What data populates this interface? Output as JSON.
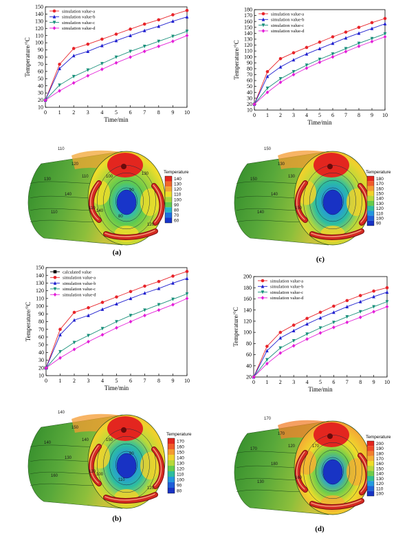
{
  "chart_data": [
    {
      "id": "a",
      "type": "line",
      "xlabel": "Time/min",
      "ylabel": "Temperature/°C",
      "ylim": [
        10,
        150
      ],
      "yticks": [
        10,
        20,
        30,
        40,
        50,
        60,
        70,
        80,
        90,
        100,
        110,
        120,
        130,
        140,
        150
      ],
      "xlim": [
        0,
        10
      ],
      "xticks": [
        0,
        1,
        2,
        3,
        4,
        5,
        6,
        7,
        8,
        9,
        10
      ],
      "legend_position": "top-left",
      "x": [
        0,
        1,
        2,
        3,
        4,
        5,
        6,
        7,
        8,
        9,
        10
      ],
      "series": [
        {
          "name": "simulation value-a",
          "color": "#e8242a",
          "marker": "circle",
          "values": [
            20,
            70,
            92,
            98,
            105,
            112,
            119,
            126,
            132,
            139,
            145
          ]
        },
        {
          "name": "simulation value-b",
          "color": "#1f1fcf",
          "marker": "triangle-up",
          "values": [
            20,
            64,
            82,
            88,
            96,
            103,
            110,
            117,
            123,
            130,
            136
          ]
        },
        {
          "name": "simulation value-c",
          "color": "#17907a",
          "marker": "triangle-down",
          "values": [
            20,
            41,
            53,
            62,
            71,
            80,
            88,
            95,
            102,
            109,
            116
          ]
        },
        {
          "name": "simulation value-d",
          "color": "#e31ed8",
          "marker": "diamond",
          "values": [
            20,
            33,
            44,
            54,
            63,
            72,
            80,
            88,
            95,
            102,
            110
          ]
        }
      ]
    },
    {
      "id": "c",
      "type": "line",
      "xlabel": "Time/min",
      "ylabel": "Temperature/°C",
      "ylim": [
        10,
        180
      ],
      "yticks": [
        10,
        20,
        30,
        40,
        50,
        60,
        70,
        80,
        90,
        100,
        110,
        120,
        130,
        140,
        150,
        160,
        170,
        180
      ],
      "xlim": [
        0,
        10
      ],
      "xticks": [
        0,
        1,
        2,
        3,
        4,
        5,
        6,
        7,
        8,
        9,
        10
      ],
      "legend_position": "top-left",
      "x": [
        0,
        1,
        2,
        3,
        4,
        5,
        6,
        7,
        8,
        9,
        10
      ],
      "series": [
        {
          "name": "simulation value-a",
          "color": "#e8242a",
          "marker": "circle",
          "values": [
            20,
            75,
            97,
            107,
            116,
            125,
            134,
            142,
            150,
            158,
            165
          ]
        },
        {
          "name": "simulation value-b",
          "color": "#1f1fcf",
          "marker": "triangle-up",
          "values": [
            20,
            67,
            83,
            95,
            105,
            114,
            123,
            132,
            140,
            148,
            156
          ]
        },
        {
          "name": "simulation value-c",
          "color": "#17907a",
          "marker": "triangle-down",
          "values": [
            20,
            47,
            63,
            75,
            86,
            96,
            105,
            114,
            123,
            131,
            139
          ]
        },
        {
          "name": "simulation value-d",
          "color": "#e31ed8",
          "marker": "diamond",
          "values": [
            20,
            40,
            57,
            70,
            81,
            91,
            100,
            109,
            118,
            126,
            134
          ]
        }
      ]
    },
    {
      "id": "b",
      "type": "line",
      "xlabel": "Time/min",
      "ylabel": "Temperature/°C",
      "ylim": [
        10,
        150
      ],
      "yticks": [
        10,
        20,
        30,
        40,
        50,
        60,
        70,
        80,
        90,
        100,
        110,
        120,
        130,
        140,
        150
      ],
      "xlim": [
        0,
        10
      ],
      "xticks": [
        0,
        1,
        2,
        3,
        4,
        5,
        6,
        7,
        8,
        9,
        10
      ],
      "legend_position": "top-left",
      "x": [
        0,
        1,
        2,
        3,
        4,
        5,
        6,
        7,
        8,
        9,
        10
      ],
      "series": [
        {
          "name": "calculated value",
          "color": "#000000",
          "marker": "square",
          "values": [
            20,
            null,
            null,
            null,
            null,
            null,
            null,
            null,
            null,
            null,
            null
          ]
        },
        {
          "name": "simulation value-a",
          "color": "#e8242a",
          "marker": "circle",
          "values": [
            20,
            70,
            92,
            98,
            105,
            112,
            119,
            126,
            132,
            139,
            145
          ]
        },
        {
          "name": "simulation value-b",
          "color": "#1f1fcf",
          "marker": "triangle-up",
          "values": [
            20,
            63,
            82,
            88,
            96,
            103,
            110,
            117,
            123,
            130,
            136
          ]
        },
        {
          "name": "simulation value-c",
          "color": "#17907a",
          "marker": "triangle-down",
          "values": [
            20,
            41,
            53,
            62,
            71,
            80,
            88,
            95,
            102,
            109,
            116
          ]
        },
        {
          "name": "simulation value-d",
          "color": "#e31ed8",
          "marker": "diamond",
          "values": [
            20,
            33,
            44,
            54,
            63,
            72,
            80,
            88,
            95,
            102,
            110
          ]
        }
      ]
    },
    {
      "id": "d",
      "type": "line",
      "xlabel": "Time/min",
      "ylabel": "Temperature/°C",
      "ylim": [
        20,
        200
      ],
      "yticks": [
        20,
        40,
        60,
        80,
        100,
        120,
        140,
        160,
        180,
        200
      ],
      "xlim": [
        0,
        10
      ],
      "xticks": [
        0,
        1,
        2,
        3,
        4,
        5,
        6,
        7,
        8,
        9,
        10
      ],
      "legend_position": "top-left",
      "x": [
        0,
        1,
        2,
        3,
        4,
        5,
        6,
        7,
        8,
        9,
        10
      ],
      "series": [
        {
          "name": "simulation value-a",
          "color": "#e8242a",
          "marker": "circle",
          "values": [
            20,
            75,
            100,
            113,
            125,
            136,
            147,
            157,
            166,
            174,
            180
          ]
        },
        {
          "name": "simulation value-b",
          "color": "#1f1fcf",
          "marker": "triangle-up",
          "values": [
            20,
            67,
            90,
            103,
            115,
            126,
            136,
            146,
            155,
            164,
            172
          ]
        },
        {
          "name": "simulation value-c",
          "color": "#17907a",
          "marker": "triangle-down",
          "values": [
            20,
            51,
            72,
            85,
            97,
            108,
            118,
            128,
            137,
            146,
            155
          ]
        },
        {
          "name": "simulation value-d",
          "color": "#e31ed8",
          "marker": "diamond",
          "values": [
            20,
            44,
            63,
            76,
            88,
            99,
            109,
            118,
            127,
            137,
            146
          ]
        }
      ]
    }
  ],
  "thermal_maps": [
    {
      "id": "a",
      "colorbar_title": "Temperature",
      "colorbar_ticks": [
        "140",
        "130",
        "120",
        "110",
        "100",
        "90",
        "80",
        "70",
        "60"
      ],
      "colors": [
        "#e3261f",
        "#f1682a",
        "#f2a533",
        "#eedd2a",
        "#a6d43a",
        "#5fca4f",
        "#27b6c7",
        "#1f6fe0",
        "#1835c9"
      ],
      "contour_labels": [
        "110",
        "120",
        "130",
        "140",
        "110",
        "110",
        "110",
        "100",
        "90",
        "80",
        "120",
        "140",
        "130"
      ]
    },
    {
      "id": "c",
      "colorbar_title": "Temperature",
      "colorbar_ticks": [
        "180",
        "170",
        "160",
        "150",
        "140",
        "130",
        "120",
        "110",
        "100",
        "90"
      ],
      "colors": [
        "#e3261f",
        "#f05b2a",
        "#f49b31",
        "#f0d22c",
        "#b7d93a",
        "#66cc4c",
        "#2dbd9f",
        "#2496df",
        "#1f5ed8",
        "#1832c4"
      ],
      "contour_labels": [
        "150",
        "130",
        "150",
        "140",
        "150",
        "130",
        "140"
      ]
    },
    {
      "id": "b",
      "colorbar_title": "Temperature",
      "colorbar_ticks": [
        "170",
        "160",
        "150",
        "140",
        "130",
        "120",
        "110",
        "100",
        "90",
        "80"
      ],
      "colors": [
        "#e3261f",
        "#f05b2a",
        "#f49b31",
        "#f0d22c",
        "#b7d93a",
        "#66cc4c",
        "#2dbd9f",
        "#2496df",
        "#1f5ed8",
        "#1832c4"
      ],
      "contour_labels": [
        "140",
        "150",
        "140",
        "130",
        "120",
        "140",
        "160",
        "150",
        "90",
        "110",
        "120",
        "100"
      ]
    },
    {
      "id": "d",
      "colorbar_title": "Temperature",
      "colorbar_ticks": [
        "200",
        "190",
        "180",
        "170",
        "160",
        "150",
        "140",
        "130",
        "120",
        "110",
        "100"
      ],
      "colors": [
        "#e3261f",
        "#ee4a28",
        "#f2802e",
        "#f4b033",
        "#eedd2a",
        "#b8d83a",
        "#6fcd4a",
        "#30be8f",
        "#249be0",
        "#1f63d8",
        "#1834c4"
      ],
      "contour_labels": [
        "170",
        "170",
        "170",
        "180",
        "160",
        "120",
        "130",
        "170"
      ]
    }
  ],
  "panel_labels": [
    "(a)",
    "(c)",
    "(b)",
    "(d)"
  ]
}
